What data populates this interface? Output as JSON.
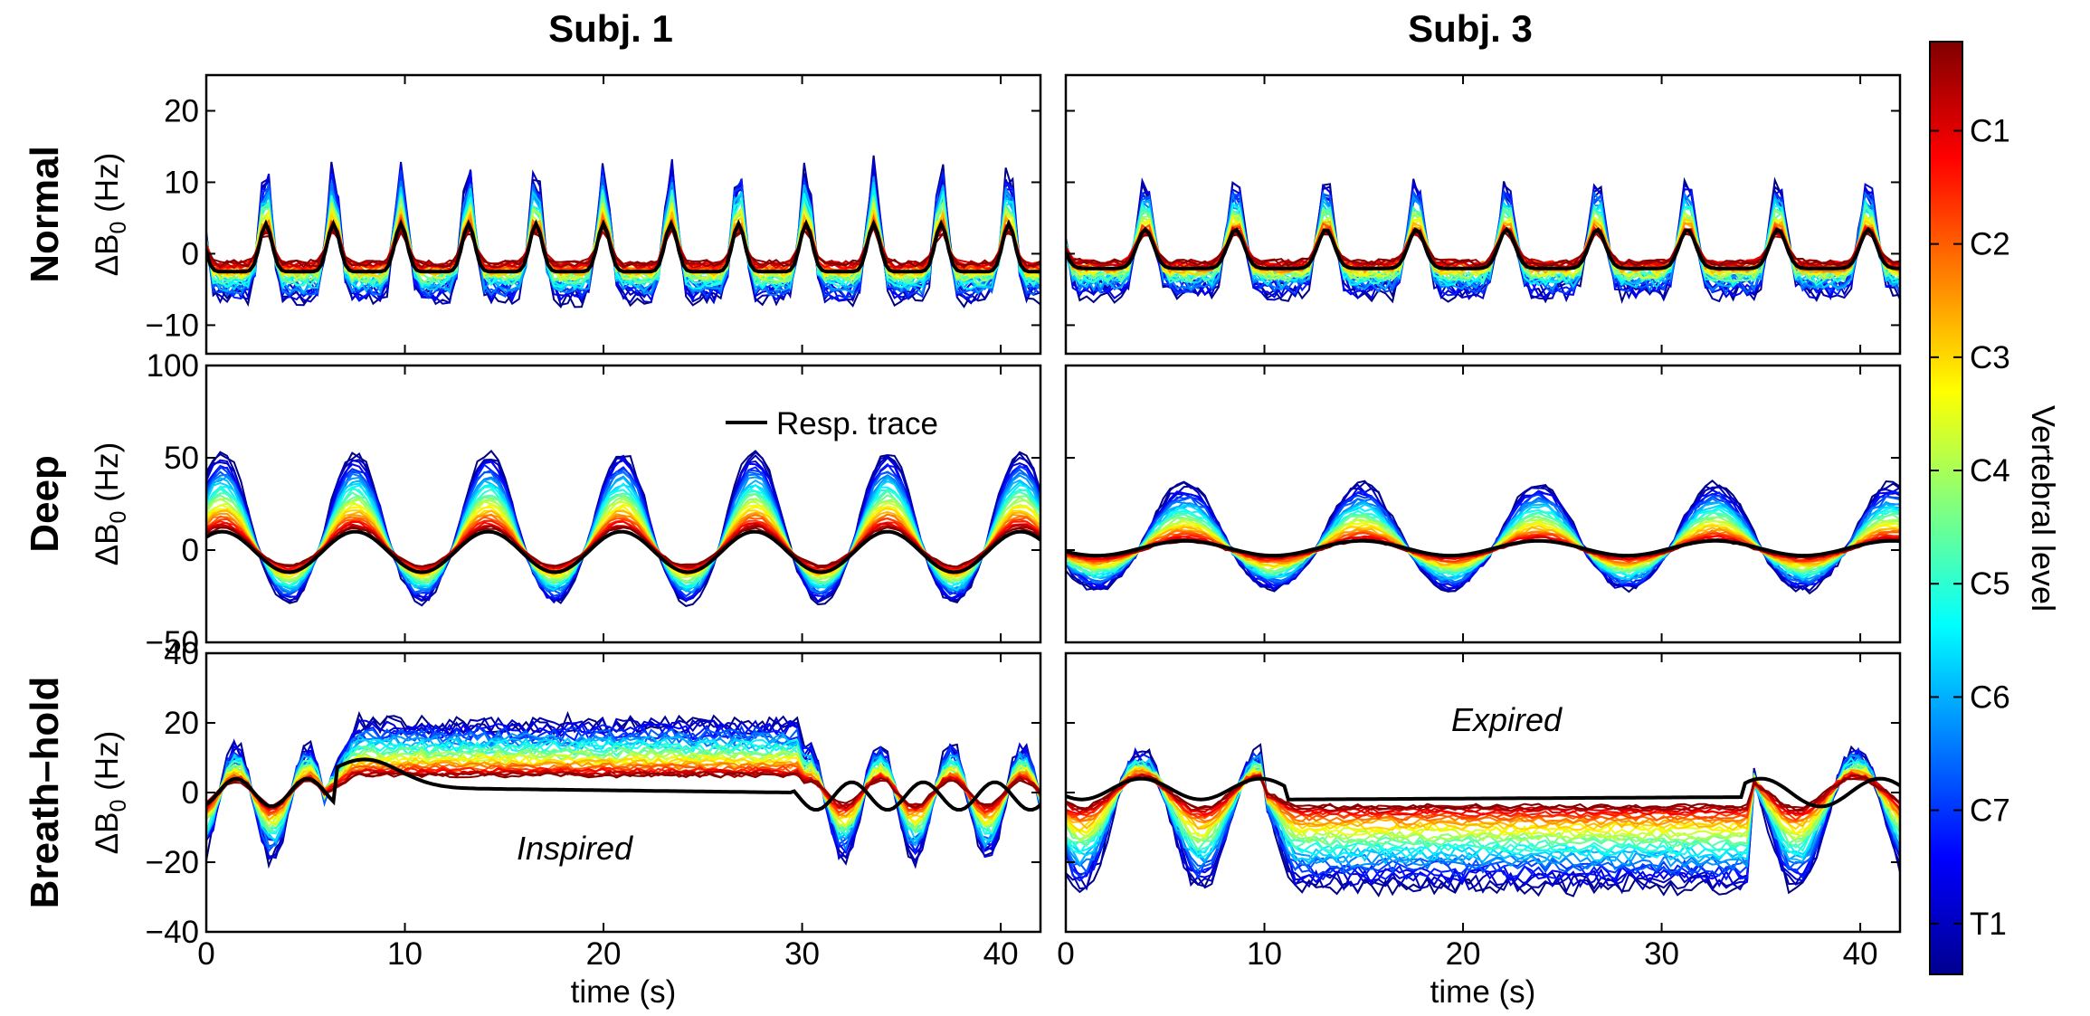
{
  "chart_data": {
    "type": "line",
    "columns": [
      "Subj. 1",
      "Subj. 3"
    ],
    "rows": [
      "Normal",
      "Deep",
      "Breath–hold"
    ],
    "ylabel_text": "ΔB",
    "ylabel_sub": "0",
    "ylabel_unit": " (Hz)",
    "xlabel": "time (s)",
    "xlim": [
      0,
      42
    ],
    "xticks": [
      0,
      10,
      20,
      30,
      40
    ],
    "ylims": [
      [
        -14,
        25
      ],
      [
        -50,
        100
      ],
      [
        -40,
        40
      ]
    ],
    "yticks": [
      [
        -10,
        0,
        10,
        20
      ],
      [
        -50,
        0,
        50,
        100
      ],
      [
        -40,
        -20,
        0,
        20,
        40
      ]
    ],
    "legend": "Resp. trace",
    "annotations": {
      "inspired": "Inspired",
      "expired": "Expired"
    },
    "colorbar": {
      "label": "Vertebral level",
      "ticks": [
        "C1",
        "C2",
        "C3",
        "C4",
        "C5",
        "C6",
        "C7",
        "T1"
      ],
      "colormap": "jet"
    },
    "series_count_per_panel": 34,
    "panels": [
      {
        "row": "Normal",
        "col": "Subj. 1",
        "period_s": 3.4,
        "phase_s": 3.0,
        "top_amp": 4.5,
        "bottom_amp": 18,
        "bottom_offset": -2
      },
      {
        "row": "Normal",
        "col": "Subj. 3",
        "period_s": 4.55,
        "phase_s": 4.0,
        "top_amp": 4,
        "bottom_amp": 15,
        "bottom_offset": -3
      },
      {
        "row": "Deep",
        "col": "Subj. 1",
        "period_s": 6.7,
        "phase_s": 7.5,
        "top_amp": 12,
        "bottom_amp": 48,
        "bottom_offset": 5
      },
      {
        "row": "Deep",
        "col": "Subj. 3",
        "period_s": 8.9,
        "phase_s": 6.0,
        "top_amp": 5,
        "bottom_amp": 34,
        "bottom_offset": 2
      },
      {
        "row": "Breath–hold",
        "col": "Subj. 1",
        "hold_start_s": 7,
        "hold_end_s": 29.5,
        "hold_top": 5,
        "hold_bottom": 20
      },
      {
        "row": "Breath–hold",
        "col": "Subj. 3",
        "hold_start_s": 11,
        "hold_end_s": 34,
        "hold_top": -4,
        "hold_bottom": -25
      }
    ],
    "colors": {
      "resp_trace": "#000000",
      "frame": "#000000"
    }
  }
}
